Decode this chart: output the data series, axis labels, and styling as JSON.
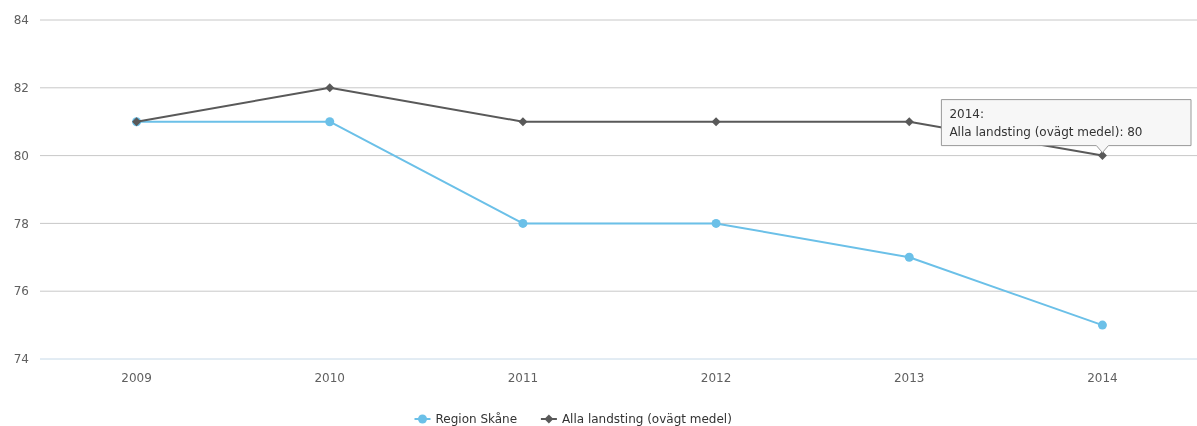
{
  "chart_data": {
    "type": "line",
    "categories": [
      "2009",
      "2010",
      "2011",
      "2012",
      "2013",
      "2014"
    ],
    "series": [
      {
        "name": "Region Skåne",
        "color": "#6bc0e8",
        "marker": "circle",
        "values": [
          81,
          81,
          78,
          78,
          77,
          75
        ]
      },
      {
        "name": "Alla landsting (ovägt medel)",
        "color": "#595959",
        "marker": "diamond",
        "values": [
          81,
          82,
          81,
          81,
          81,
          80
        ]
      }
    ],
    "ylim": [
      74,
      84
    ],
    "yticks": [
      74,
      76,
      78,
      80,
      82,
      84
    ],
    "grid": "y",
    "legend": "bottom",
    "annotations": [
      {
        "text": "2014:\nAlla landsting (ovägt medel): 80",
        "x": "2014",
        "y": 80
      }
    ]
  }
}
